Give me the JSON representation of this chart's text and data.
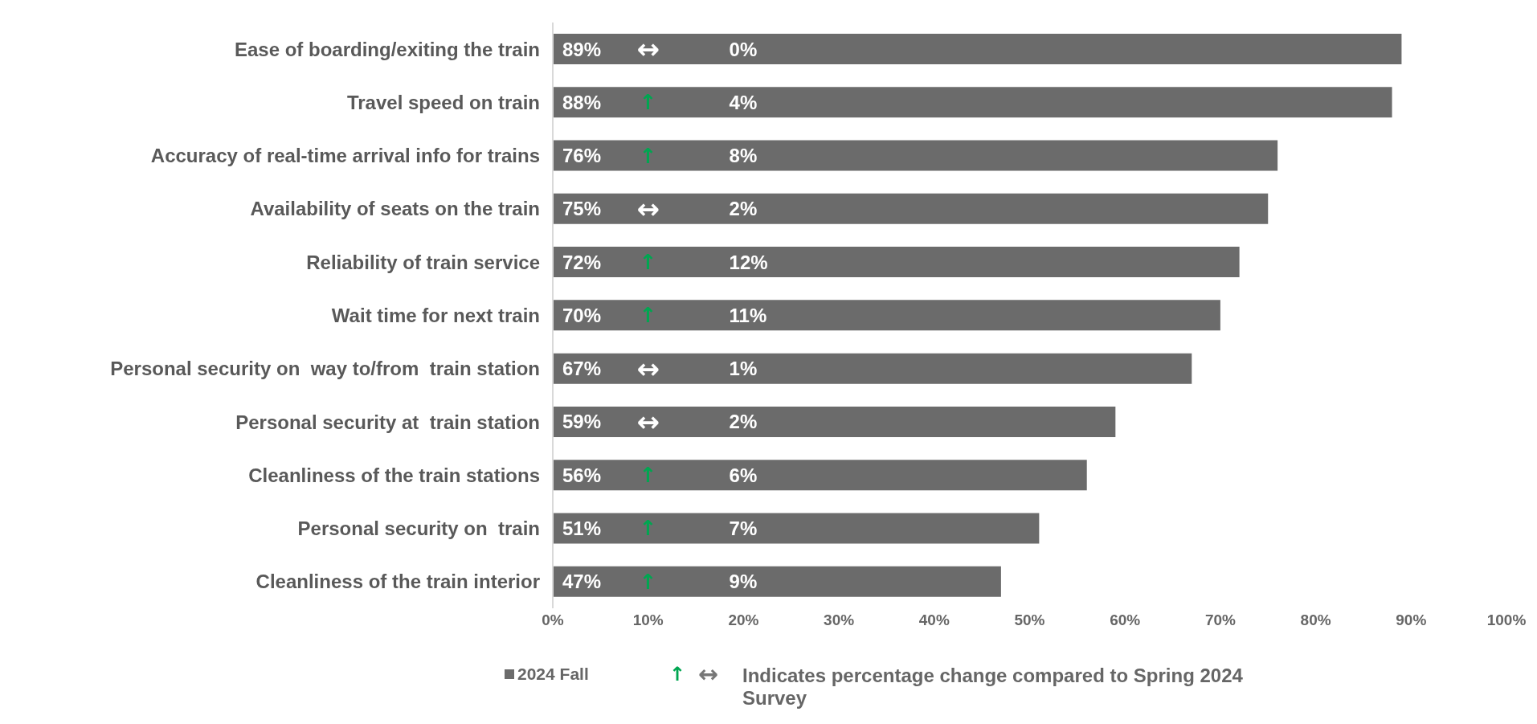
{
  "chart_data": {
    "type": "bar",
    "orientation": "horizontal",
    "categories": [
      "Ease of boarding/exiting the train",
      "Travel speed on train",
      "Accuracy of real-time arrival info for trains",
      "Availability of seats on the train",
      "Reliability of train service",
      "Wait time for next train",
      "Personal security on  way to/from  train station",
      "Personal security at  train station",
      "Cleanliness of the train stations",
      "Personal security on  train",
      "Cleanliness of the train interior"
    ],
    "series": [
      {
        "name": "2024 Fall",
        "color": "#6b6b6b",
        "values": [
          89,
          88,
          76,
          75,
          72,
          70,
          67,
          59,
          56,
          51,
          47
        ],
        "value_labels": [
          "89%",
          "88%",
          "76%",
          "75%",
          "72%",
          "70%",
          "67%",
          "59%",
          "56%",
          "51%",
          "47%"
        ]
      }
    ],
    "xlim": [
      0,
      100
    ],
    "xticks": [
      {
        "value": 0,
        "label": "0%"
      },
      {
        "value": 10,
        "label": "10%"
      },
      {
        "value": 20,
        "label": "20%"
      },
      {
        "value": 30,
        "label": "30%"
      },
      {
        "value": 40,
        "label": "40%"
      },
      {
        "value": 50,
        "label": "50%"
      },
      {
        "value": 60,
        "label": "60%"
      },
      {
        "value": 70,
        "label": "70%"
      },
      {
        "value": 80,
        "label": "80%"
      },
      {
        "value": 90,
        "label": "90%"
      },
      {
        "value": 100,
        "label": "100%"
      }
    ],
    "grid": false,
    "legend": "bottom",
    "annotations": [
      "↑",
      "↔",
      "Indicates percentage change compared to Spring 2024 Survey",
      "↔",
      "0%",
      "↑",
      "4%",
      "↑",
      "8%",
      "↔",
      "2%",
      "↑",
      "12%",
      "↑",
      "11%",
      "↔",
      "1%",
      "↔",
      "2%",
      "↑",
      "6%",
      "↑",
      "7%",
      "↑",
      "9%"
    ]
  }
}
